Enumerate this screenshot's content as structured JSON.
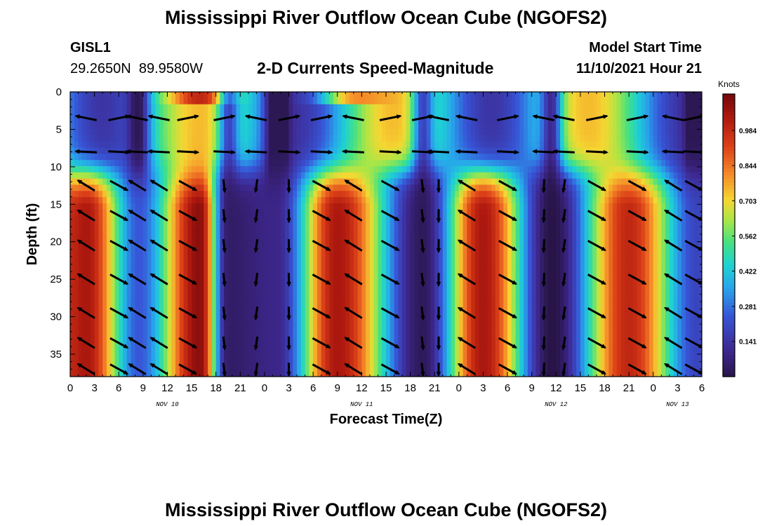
{
  "page": {
    "title": "Mississippi River Outflow Ocean Cube (NGOFS2)",
    "title_repeat": "Mississippi River Outflow Ocean Cube (NGOFS2)",
    "station_id": "GISL1",
    "station_coords": "29.2650N  89.9580W",
    "subtitle": "2-D Currents Speed-Magnitude",
    "model_start_label": "Model Start Time",
    "model_start_value": "11/10/2021 Hour 21"
  },
  "chart_data": {
    "type": "heatmap",
    "title": "2-D Currents Speed-Magnitude",
    "xlabel": "Forecast Time(Z)",
    "ylabel": "Depth (ft)",
    "x_tick_labels": [
      "0",
      "3",
      "6",
      "9",
      "12",
      "15",
      "18",
      "21",
      "0",
      "3",
      "6",
      "9",
      "12",
      "15",
      "18",
      "21",
      "0",
      "3",
      "6",
      "9",
      "12",
      "15",
      "18",
      "21",
      "0",
      "3",
      "6"
    ],
    "x_day_labels": [
      {
        "label": "NOV 10",
        "hour": 12
      },
      {
        "label": "NOV 11",
        "hour": 36
      },
      {
        "label": "NOV 12",
        "hour": 60
      },
      {
        "label": "NOV 13",
        "hour": 75
      }
    ],
    "xlim_hours": [
      0,
      78
    ],
    "y_ticks": [
      0,
      5,
      10,
      15,
      20,
      25,
      30,
      35
    ],
    "ylim_ft": [
      0,
      38
    ],
    "y_inverted": true,
    "colorbar": {
      "unit": "Knots",
      "ticks": [
        0.141,
        0.281,
        0.422,
        0.562,
        0.703,
        0.844,
        0.984
      ],
      "range": [
        0.0,
        1.13
      ]
    },
    "surface_layer": {
      "depth_ft": [
        0,
        8
      ],
      "description_values": "weak flow (about 0.3-0.6 kt) with maxima near 0.9 kt at surface around hours 16 and 34"
    },
    "deep_layer_speed_maxima": [
      {
        "hour": 2,
        "speed_kt": 1.05
      },
      {
        "hour": 16,
        "speed_kt": 1.1
      },
      {
        "hour": 33,
        "speed_kt": 1.05
      },
      {
        "hour": 51,
        "speed_kt": 1.05
      },
      {
        "hour": 69,
        "speed_kt": 1.0
      }
    ],
    "deep_layer_speed_minima": [
      {
        "hour": 8.5,
        "speed_kt": 0.25
      },
      {
        "hour": 19.5,
        "speed_kt": 0.05
      },
      {
        "hour": 25.5,
        "speed_kt": 0.1
      },
      {
        "hour": 43.5,
        "speed_kt": 0.03
      },
      {
        "hour": 59.5,
        "speed_kt": 0.0
      },
      {
        "hour": 77.5,
        "speed_kt": 0.2
      }
    ],
    "vector_rows_ft": [
      3.5,
      8,
      12.5,
      16.5,
      20.5,
      25,
      29.5,
      33.5,
      37
    ],
    "vector_columns_hours": [
      2,
      6,
      8.3,
      11,
      14.5,
      19,
      23,
      27,
      31,
      35,
      39.5,
      43.5,
      45.5,
      49,
      54,
      58.5,
      61,
      65,
      70,
      74.5,
      77
    ]
  },
  "colors": {
    "background": "#ffffff",
    "vector": "#000000"
  }
}
